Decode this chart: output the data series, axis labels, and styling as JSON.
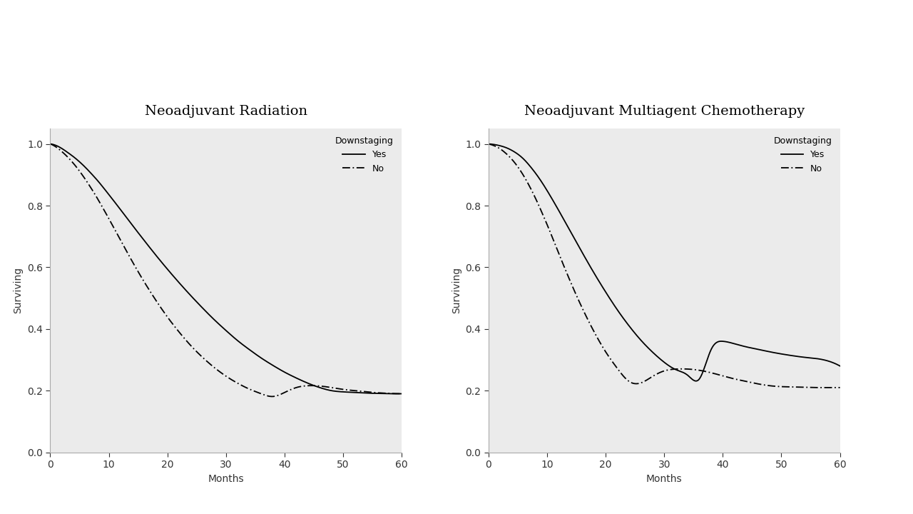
{
  "title_left": "Neoadjuvant Radiation",
  "title_right": "Neoadjuvant Multiagent Chemotherapy",
  "xlabel": "Months",
  "ylabel": "Surviving",
  "xlim": [
    0,
    60
  ],
  "ylim": [
    0.0,
    1.05
  ],
  "xticks": [
    0,
    10,
    20,
    30,
    40,
    50,
    60
  ],
  "yticks": [
    0.0,
    0.2,
    0.4,
    0.6,
    0.8,
    1.0
  ],
  "legend_title": "Downstaging",
  "legend_yes": "Yes",
  "legend_no": "No",
  "plot_bg": "#ebebeb",
  "outer_bg": "#ffffff",
  "title_fontsize": 14,
  "axis_fontsize": 10,
  "tick_fontsize": 10,
  "legend_fontsize": 9,
  "rad_yes_x": [
    0,
    1,
    2,
    3,
    4,
    5,
    6,
    7,
    8,
    9,
    10,
    12,
    14,
    16,
    18,
    20,
    22,
    24,
    26,
    28,
    30,
    32,
    34,
    36,
    38,
    40,
    42,
    44,
    46,
    48,
    50,
    52,
    54,
    56,
    58,
    60
  ],
  "rad_yes_y": [
    1.0,
    0.995,
    0.985,
    0.972,
    0.958,
    0.942,
    0.924,
    0.904,
    0.883,
    0.86,
    0.836,
    0.787,
    0.737,
    0.688,
    0.64,
    0.594,
    0.55,
    0.508,
    0.468,
    0.43,
    0.395,
    0.362,
    0.333,
    0.306,
    0.282,
    0.26,
    0.241,
    0.224,
    0.21,
    0.2,
    0.196,
    0.194,
    0.192,
    0.191,
    0.19,
    0.19
  ],
  "rad_no_x": [
    0,
    1,
    2,
    3,
    4,
    5,
    6,
    7,
    8,
    9,
    10,
    12,
    14,
    16,
    18,
    20,
    22,
    24,
    26,
    28,
    30,
    32,
    34,
    36,
    38,
    40,
    42,
    44,
    46,
    48,
    50,
    52,
    54,
    56,
    58,
    60
  ],
  "rad_no_y": [
    1.0,
    0.99,
    0.975,
    0.957,
    0.936,
    0.912,
    0.885,
    0.856,
    0.825,
    0.792,
    0.758,
    0.688,
    0.619,
    0.554,
    0.494,
    0.439,
    0.39,
    0.346,
    0.308,
    0.275,
    0.247,
    0.224,
    0.205,
    0.19,
    0.181,
    0.194,
    0.21,
    0.216,
    0.215,
    0.21,
    0.204,
    0.2,
    0.196,
    0.193,
    0.191,
    0.19
  ],
  "chemo_yes_x": [
    0,
    1,
    2,
    3,
    4,
    5,
    6,
    7,
    8,
    9,
    10,
    12,
    14,
    16,
    18,
    20,
    22,
    24,
    26,
    28,
    30,
    32,
    34,
    36,
    38,
    40,
    42,
    44,
    46,
    48,
    50,
    52,
    54,
    56,
    58,
    60
  ],
  "chemo_yes_y": [
    1.0,
    0.998,
    0.994,
    0.988,
    0.979,
    0.967,
    0.951,
    0.93,
    0.906,
    0.879,
    0.849,
    0.784,
    0.716,
    0.648,
    0.582,
    0.52,
    0.462,
    0.41,
    0.364,
    0.325,
    0.292,
    0.268,
    0.25,
    0.238,
    0.333,
    0.36,
    0.352,
    0.342,
    0.334,
    0.326,
    0.319,
    0.313,
    0.308,
    0.304,
    0.296,
    0.28
  ],
  "chemo_no_x": [
    0,
    1,
    2,
    3,
    4,
    5,
    6,
    7,
    8,
    9,
    10,
    12,
    14,
    16,
    18,
    20,
    22,
    24,
    26,
    28,
    30,
    32,
    34,
    36,
    38,
    40,
    42,
    44,
    46,
    48,
    50,
    52,
    54,
    56,
    58,
    60
  ],
  "chemo_no_y": [
    1.0,
    0.994,
    0.984,
    0.969,
    0.95,
    0.926,
    0.897,
    0.863,
    0.825,
    0.783,
    0.739,
    0.645,
    0.553,
    0.468,
    0.392,
    0.326,
    0.272,
    0.23,
    0.225,
    0.246,
    0.264,
    0.27,
    0.27,
    0.266,
    0.258,
    0.248,
    0.238,
    0.23,
    0.222,
    0.216,
    0.213,
    0.212,
    0.211,
    0.21,
    0.21,
    0.21
  ]
}
